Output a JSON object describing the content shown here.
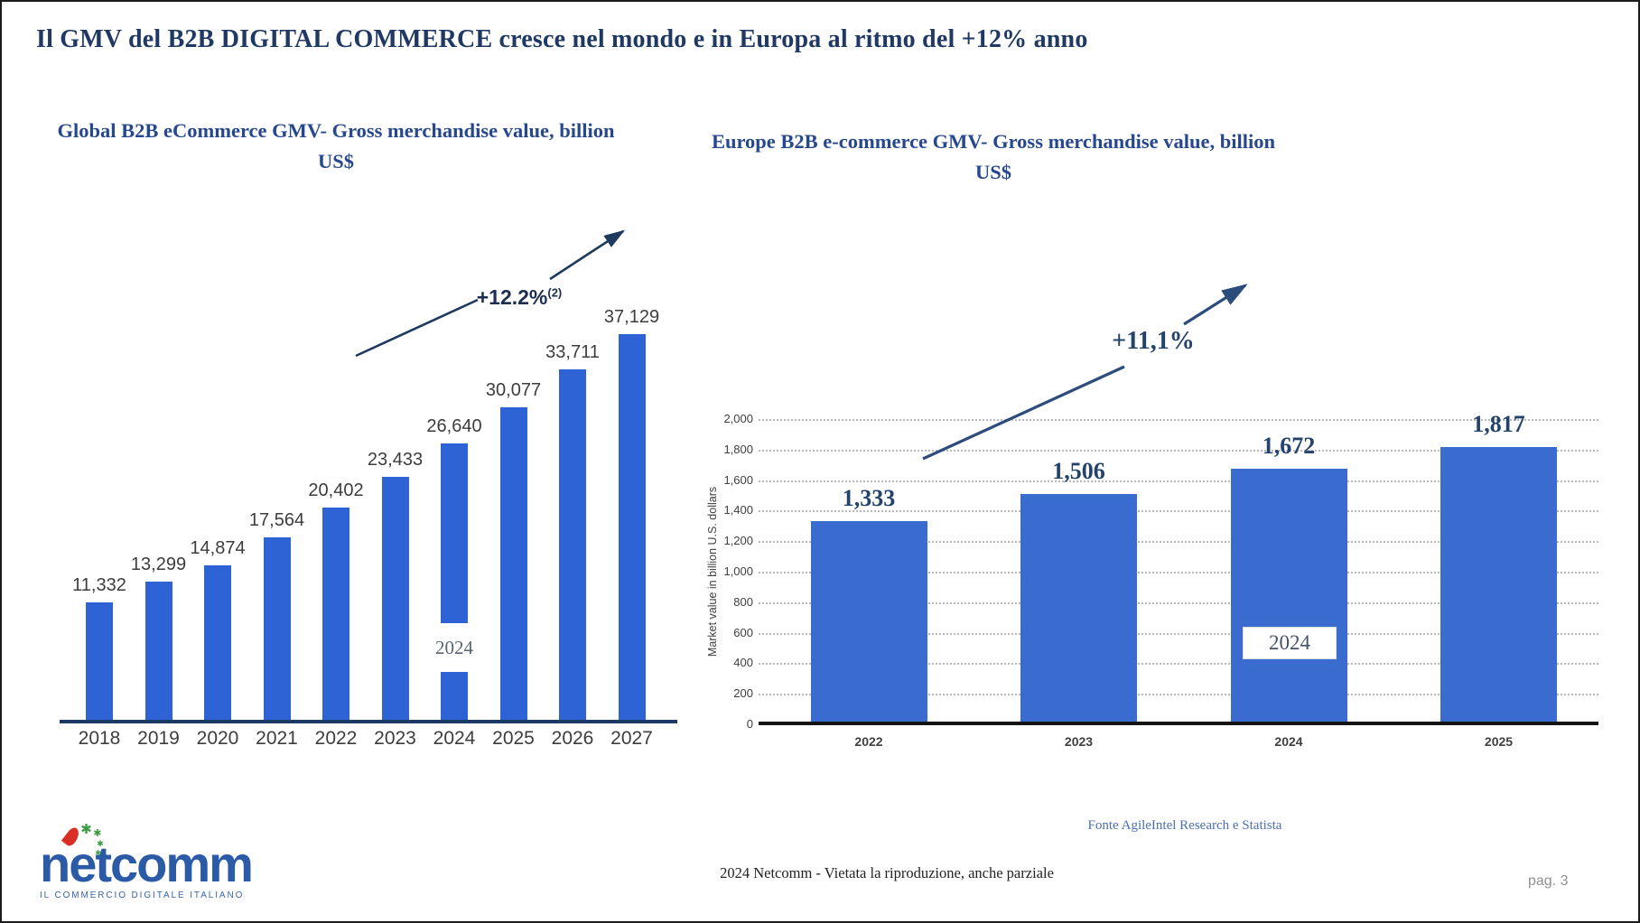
{
  "slide": {
    "title": "Il GMV del B2B DIGITAL COMMERCE cresce nel mondo e in Europa al ritmo del +12% anno",
    "source_note": "Fonte AgileIntel Research e Statista",
    "footer_center": "2024  Netcomm  - Vietata la riproduzione, anche parziale",
    "page_label": "pag. 3"
  },
  "logo": {
    "wordmark_n": "n",
    "wordmark_e": "e",
    "wordmark_tail": "tcomm",
    "tagline": "IL COMMERCIO DIGITALE ITALIANO"
  },
  "colors": {
    "title_navy": "#1f3864",
    "chart_title_blue": "#27488e",
    "global_bar_blue": "#2e63d6",
    "europe_bar_blue": "#3a6bcf",
    "annotation_navy": "#24436b",
    "logo_blue": "#2b5aa7",
    "logo_green": "#3a9b3f",
    "logo_red": "#d93025"
  },
  "chart_data": [
    {
      "type": "bar",
      "title": "Global B2B eCommerce GMV- Gross merchandise value, billion US$",
      "categories": [
        "2018",
        "2019",
        "2020",
        "2021",
        "2022",
        "2023",
        "2024",
        "2025",
        "2026",
        "2027"
      ],
      "values": [
        11332,
        13299,
        14874,
        17564,
        20402,
        23433,
        26640,
        30077,
        33711,
        37129
      ],
      "value_labels": [
        "11,332",
        "13,299",
        "14,874",
        "17,564",
        "20,402",
        "23,433",
        "26,640",
        "30,077",
        "33,711",
        "37,129"
      ],
      "ylim": [
        0,
        40000
      ],
      "grid": false,
      "legend": null,
      "bar_color": "#2e63d6",
      "annotation": {
        "text": "+12.2%",
        "superscript": "(2)"
      },
      "embedded_year_label": "2024"
    },
    {
      "type": "bar",
      "title": "Europe B2B e-commerce GMV- Gross merchandise value, billion US$",
      "categories": [
        "2022",
        "2023",
        "2024",
        "2025"
      ],
      "values": [
        1333,
        1506,
        1672,
        1817
      ],
      "value_labels": [
        "1,333",
        "1,506",
        "1,672",
        "1,817"
      ],
      "ylabel": "Market value in billion U.S. dollars",
      "yticks": [
        0,
        200,
        400,
        600,
        800,
        1000,
        1200,
        1400,
        1600,
        1800,
        2000
      ],
      "ytick_labels": [
        "0",
        "200",
        "400",
        "600",
        "800",
        "1,000",
        "1,200",
        "1,400",
        "1,600",
        "1,800",
        "2,000"
      ],
      "ylim": [
        0,
        2000
      ],
      "grid": true,
      "legend": null,
      "bar_color": "#3a6bcf",
      "annotation": {
        "text": "+11,1%"
      },
      "embedded_year_label": "2024"
    }
  ]
}
